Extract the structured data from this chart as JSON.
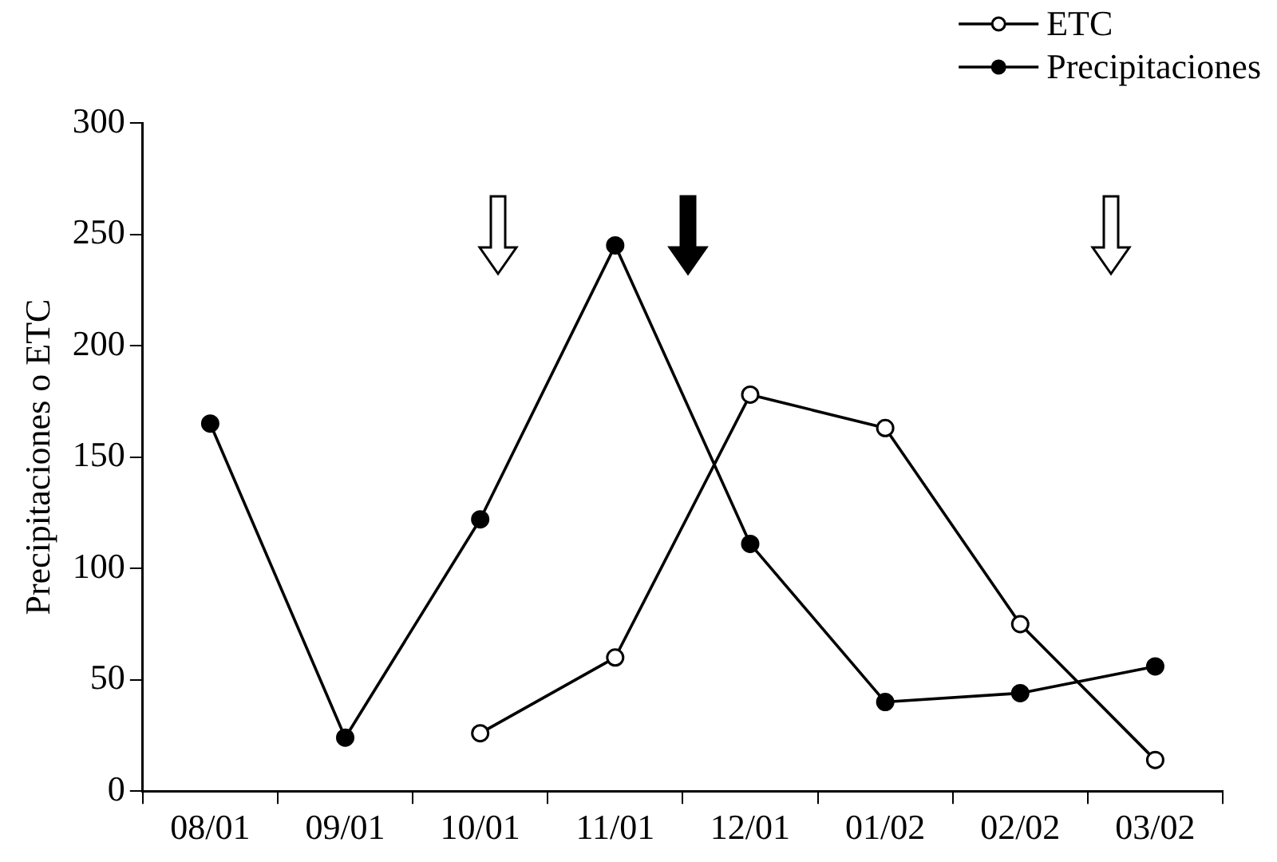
{
  "chart_data": {
    "type": "line",
    "ylabel": "Precipitaciones o ETC",
    "categories": [
      "08/01",
      "09/01",
      "10/01",
      "11/01",
      "12/01",
      "01/02",
      "02/02",
      "03/02"
    ],
    "series": [
      {
        "name": "ETC",
        "color": "#000000",
        "marker": "circle",
        "values": [
          null,
          null,
          26,
          60,
          178,
          163,
          75,
          14
        ]
      },
      {
        "name": "Precipitaciones",
        "color": "#000000",
        "marker": "circle",
        "values": [
          165,
          24,
          122,
          245,
          111,
          40,
          44,
          56
        ]
      }
    ],
    "ylim": [
      0,
      300
    ],
    "yticks": [
      0,
      50,
      100,
      150,
      200,
      250,
      300
    ],
    "grid": false,
    "legend": "top right",
    "line_style": "solid"
  }
}
